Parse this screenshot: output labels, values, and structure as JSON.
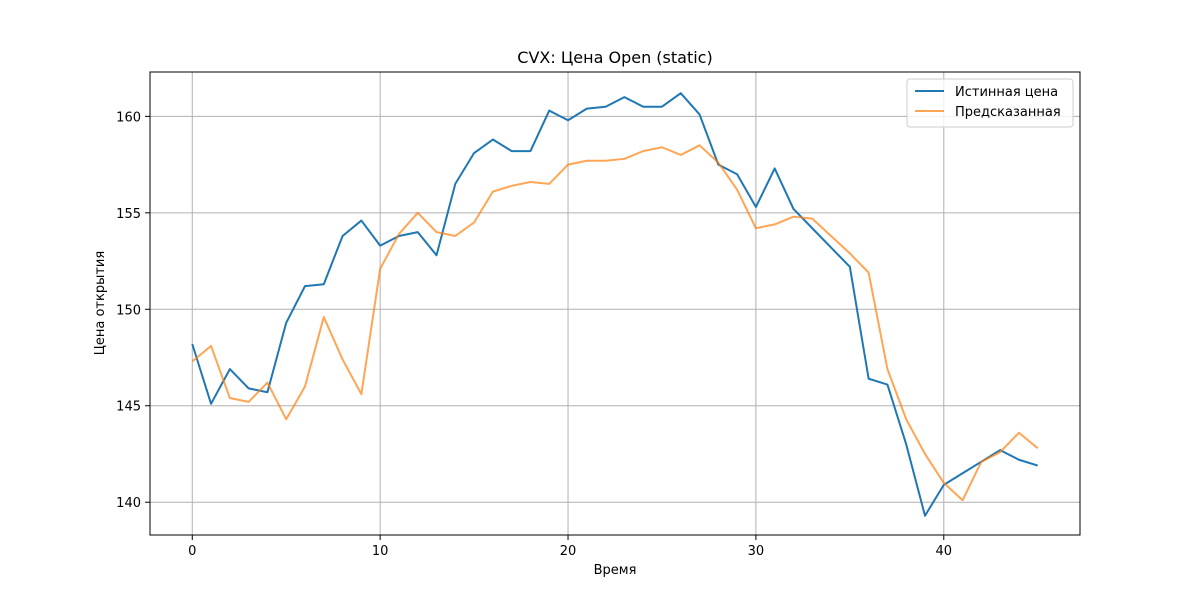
{
  "chart_data": {
    "type": "line",
    "title": "CVX: Цена Open (static)",
    "xlabel": "Время",
    "ylabel": "Цена открытия",
    "xlim": [
      -2.25,
      47.25
    ],
    "ylim": [
      138.3,
      162.3
    ],
    "x_ticks": [
      0,
      10,
      20,
      30,
      40
    ],
    "y_ticks": [
      140,
      145,
      150,
      155,
      160
    ],
    "grid": true,
    "legend_position": "upper-right",
    "x": [
      0,
      1,
      2,
      3,
      4,
      5,
      6,
      7,
      8,
      9,
      10,
      11,
      12,
      13,
      14,
      15,
      16,
      17,
      18,
      19,
      20,
      21,
      22,
      23,
      24,
      25,
      26,
      27,
      28,
      29,
      30,
      31,
      32,
      33,
      34,
      35,
      36,
      37,
      38,
      39,
      40,
      41,
      42,
      43,
      44,
      45
    ],
    "series": [
      {
        "name": "Истинная цена",
        "color": "#1f77b4",
        "values": [
          148.2,
          145.1,
          146.9,
          145.9,
          145.7,
          149.3,
          151.2,
          151.3,
          153.8,
          154.6,
          153.3,
          153.8,
          154.0,
          152.8,
          156.5,
          158.1,
          158.8,
          158.2,
          158.2,
          160.3,
          159.8,
          160.4,
          160.5,
          161.0,
          160.5,
          160.5,
          161.2,
          160.1,
          157.5,
          157.0,
          155.3,
          157.3,
          155.2,
          154.2,
          153.2,
          152.2,
          146.4,
          146.1,
          143.0,
          139.3,
          140.9,
          141.5,
          142.1,
          142.7,
          142.2,
          141.9
        ]
      },
      {
        "name": "Предсказанная",
        "color": "#ff7f0e",
        "values": [
          147.3,
          148.1,
          145.4,
          145.2,
          146.2,
          144.3,
          146.0,
          149.6,
          147.4,
          145.6,
          152.1,
          153.9,
          155.0,
          154.0,
          153.8,
          154.5,
          156.1,
          156.4,
          156.6,
          156.5,
          157.5,
          157.7,
          157.7,
          157.8,
          158.2,
          158.4,
          158.0,
          158.5,
          157.6,
          156.2,
          154.2,
          154.4,
          154.8,
          154.7,
          153.8,
          152.9,
          151.9,
          146.9,
          144.3,
          142.5,
          141.0,
          140.1,
          142.1,
          142.6,
          143.6,
          142.8
        ]
      }
    ]
  }
}
